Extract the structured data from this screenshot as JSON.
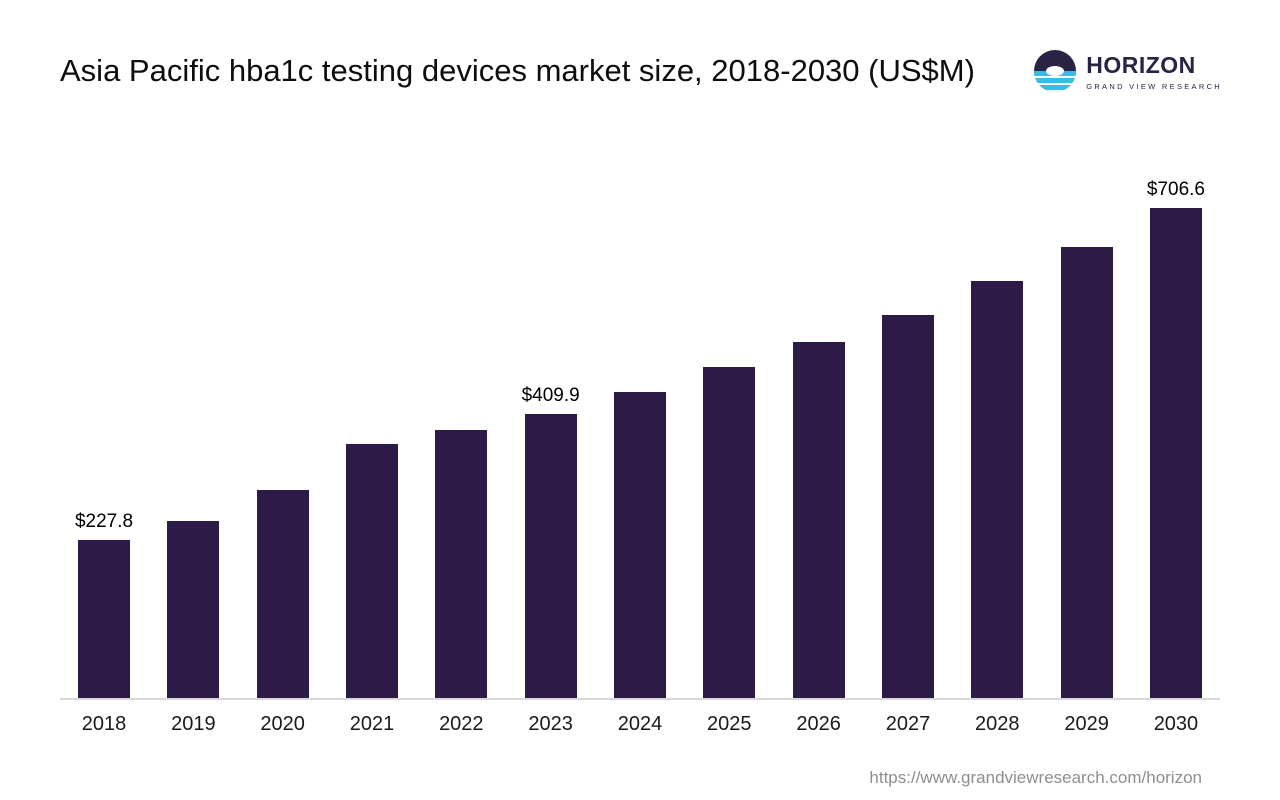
{
  "header": {
    "title": "Asia Pacific hba1c testing devices market size, 2018-2030 (US$M)"
  },
  "logo": {
    "name": "HORIZON",
    "subtitle": "GRAND VIEW RESEARCH"
  },
  "chart_data": {
    "type": "bar",
    "title": "Asia Pacific hba1c testing devices market size, 2018-2030 (US$M)",
    "categories": [
      "2018",
      "2019",
      "2020",
      "2021",
      "2022",
      "2023",
      "2024",
      "2025",
      "2026",
      "2027",
      "2028",
      "2029",
      "2030"
    ],
    "values": [
      227.8,
      256,
      300,
      366,
      387,
      409.9,
      441,
      477,
      514,
      553,
      602,
      650,
      706.6
    ],
    "data_labels": [
      "$227.8",
      null,
      null,
      null,
      null,
      "$409.9",
      null,
      null,
      null,
      null,
      null,
      null,
      "$706.6"
    ],
    "bar_color": "#2e1a47",
    "ylim": [
      0,
      750
    ],
    "xlabel": "",
    "ylabel": "",
    "grid": false,
    "legend": false
  },
  "footer": {
    "url": "https://www.grandviewresearch.com/horizon"
  }
}
